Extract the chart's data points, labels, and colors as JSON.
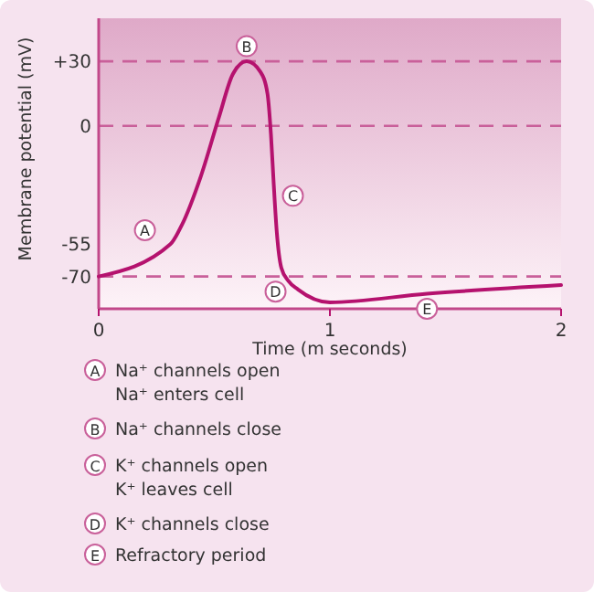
{
  "chart_data": {
    "type": "line",
    "xlabel": "Time (m seconds)",
    "ylabel": "Membrane potential (mV)",
    "x": [
      0,
      0.31,
      0.36,
      0.44,
      0.52,
      0.58,
      0.64,
      0.7,
      0.73,
      0.745,
      0.757,
      0.77,
      0.79,
      0.82,
      0.862,
      1.0,
      1.42,
      2
    ],
    "series": [
      {
        "color": "#b5126e",
        "values": [
          -70,
          -55,
          -46,
          -24,
          4,
          24,
          30,
          25,
          15,
          -4,
          -27,
          -49,
          -66,
          -72,
          -76,
          -82,
          -78,
          -74
        ]
      }
    ],
    "xlim": [
      0,
      2
    ],
    "xticks": [
      0,
      1,
      2
    ],
    "ylim": [
      -85,
      50
    ],
    "yticks": [
      {
        "value": 30,
        "label": "+30"
      },
      0,
      -55,
      -70
    ],
    "grid": false,
    "marker": "none",
    "line_style": "solid",
    "ref_lines": [
      {
        "axis": "y",
        "value": 30,
        "color": "#c9609a",
        "line_style": "dashed"
      },
      {
        "axis": "y",
        "value": 0,
        "color": "#c9609a",
        "line_style": "dashed"
      },
      {
        "axis": "y",
        "value": -70,
        "color": "#c9609a",
        "line_style": "dashed"
      }
    ],
    "annotations": [
      {
        "text": "A",
        "x": 0.2,
        "y": -48.5
      },
      {
        "text": "B",
        "x": 0.64,
        "y": 37
      },
      {
        "text": "C",
        "x": 0.84,
        "y": -32.5
      },
      {
        "text": "D",
        "x": 0.765,
        "y": -77
      },
      {
        "text": "E",
        "x": 1.42,
        "y": -85
      },
      "Na⁺ channels open\nNa⁺ enters cell",
      "Na⁺ channels close",
      "K⁺ channels open\nK⁺ leaves cell",
      "K⁺ channels close",
      "Refractory period"
    ]
  }
}
